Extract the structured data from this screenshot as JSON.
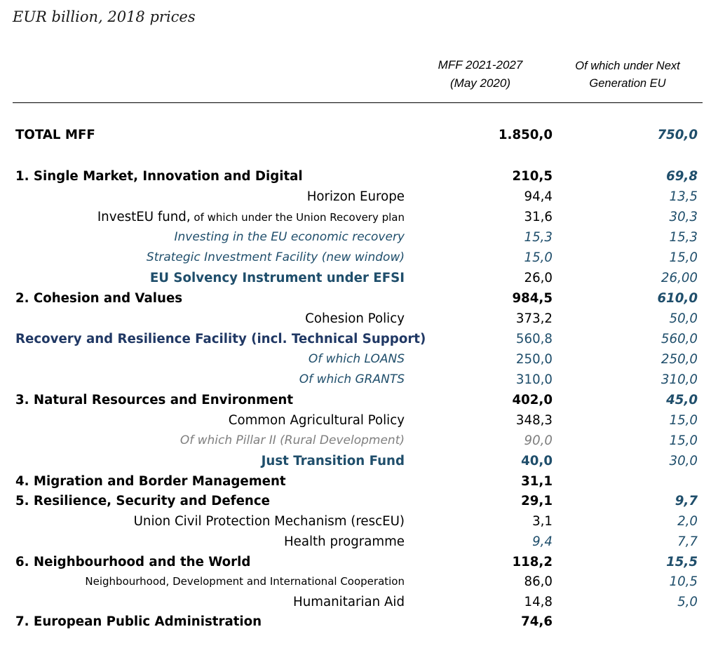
{
  "caption": "EUR billion, 2018 prices",
  "columns": {
    "col1_line1": "MFF 2021-2027",
    "col1_line2": "(May 2020)",
    "col2_line1": "Of which under Next",
    "col2_line2": "Generation EU"
  },
  "rows": [
    {
      "label": "TOTAL MFF",
      "label_small": "",
      "v1": "1.850,0",
      "v2": "750,0"
    },
    {
      "label": "1. Single Market, Innovation and Digital",
      "label_small": "",
      "v1": "210,5",
      "v2": "69,8"
    },
    {
      "label": "Horizon Europe",
      "label_small": "",
      "v1": "94,4",
      "v2": "13,5"
    },
    {
      "label": "InvestEU fund,",
      "label_small": " of which under the Union Recovery plan",
      "v1": "31,6",
      "v2": "30,3"
    },
    {
      "label": "Investing in the EU economic recovery",
      "label_small": "",
      "v1": "15,3",
      "v2": "15,3"
    },
    {
      "label": "Strategic Investment Facility (new window)",
      "label_small": "",
      "v1": "15,0",
      "v2": "15,0"
    },
    {
      "label": "EU Solvency Instrument under EFSI",
      "label_small": "",
      "v1": "26,0",
      "v2": "26,00"
    },
    {
      "label": "2. Cohesion and Values",
      "label_small": "",
      "v1": "984,5",
      "v2": "610,0"
    },
    {
      "label": "Cohesion Policy",
      "label_small": "",
      "v1": "373,2",
      "v2": "50,0"
    },
    {
      "label": "Recovery and Resilience Facility (incl. Technical Support)",
      "label_small": "",
      "v1": "560,8",
      "v2": "560,0"
    },
    {
      "label": "Of which LOANS",
      "label_small": "",
      "v1": "250,0",
      "v2": "250,0"
    },
    {
      "label": "Of which GRANTS",
      "label_small": "",
      "v1": "310,0",
      "v2": "310,0"
    },
    {
      "label": "3. Natural Resources and Environment",
      "label_small": "",
      "v1": "402,0",
      "v2": "45,0"
    },
    {
      "label": "Common Agricultural Policy",
      "label_small": "",
      "v1": "348,3",
      "v2": "15,0"
    },
    {
      "label": "Of which Pillar II (Rural Development)",
      "label_small": "",
      "v1": "90,0",
      "v2": "15,0"
    },
    {
      "label": "Just Transition Fund",
      "label_small": "",
      "v1": "40,0",
      "v2": "30,0"
    },
    {
      "label": "4. Migration and Border Management",
      "label_small": "",
      "v1": "31,1",
      "v2": ""
    },
    {
      "label": "5. Resilience, Security and Defence",
      "label_small": "",
      "v1": "29,1",
      "v2": "9,7"
    },
    {
      "label": "Union Civil Protection Mechanism (rescEU)",
      "label_small": "",
      "v1": "3,1",
      "v2": "2,0"
    },
    {
      "label": "Health programme",
      "label_small": "",
      "v1": "9,4",
      "v2": "7,7"
    },
    {
      "label": "6. Neighbourhood and the World",
      "label_small": "",
      "v1": "118,2",
      "v2": "15,5"
    },
    {
      "label": "",
      "label_small": "Neighbourhood, Development and International Cooperation",
      "v1": "86,0",
      "v2": "10,5"
    },
    {
      "label": "Humanitarian Aid",
      "label_small": "",
      "v1": "14,8",
      "v2": "5,0"
    },
    {
      "label": "7. European Public Administration",
      "label_small": "",
      "v1": "74,6",
      "v2": ""
    }
  ]
}
